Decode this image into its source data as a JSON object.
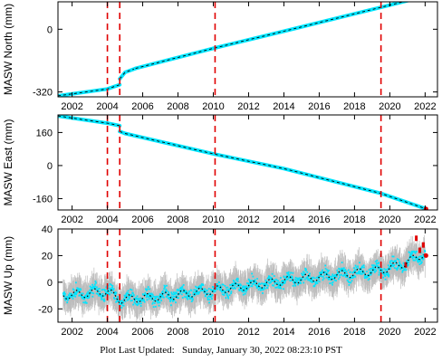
{
  "footer": {
    "label": "Plot Last Updated:",
    "datetime": "Sunday, January 30, 2022 08:23:10 PST"
  },
  "colors": {
    "series": "#00e5ff",
    "errorbar": "#bdbdbd",
    "model": "#000000",
    "event_line": "#e00000",
    "latest_point": "#e00000"
  },
  "chart_data": [
    {
      "type": "line",
      "ylabel": "MASW North (mm)",
      "xlim": [
        2001.2,
        2022.7
      ],
      "ylim": [
        -345,
        140
      ],
      "xticks": [
        2002,
        2004,
        2006,
        2008,
        2010,
        2012,
        2014,
        2016,
        2018,
        2020,
        2022
      ],
      "xtick_labels": [
        "2002",
        "2004",
        "2006",
        "2008",
        "2010",
        "2012",
        "2014",
        "2016",
        "2018",
        "2020",
        "2022"
      ],
      "yticks": [
        -320,
        0
      ],
      "ytick_labels": [
        "-320",
        "0"
      ],
      "event_lines": [
        2004.0,
        2004.7,
        2010.1,
        2019.5
      ],
      "series": [
        {
          "x": [
            2001.2,
            2004.0,
            2004.7
          ],
          "y": [
            -340,
            -305,
            -283
          ]
        },
        {
          "x": [
            2004.7,
            2005.0,
            2005.6
          ],
          "y": [
            -253,
            -220,
            -200
          ]
        },
        {
          "x": [
            2005.6,
            2010.1,
            2014.0,
            2019.5,
            2022.0
          ],
          "y": [
            -200,
            -95,
            -10,
            112,
            168
          ]
        }
      ],
      "latest_point": [
        2022.05,
        168
      ]
    },
    {
      "type": "line",
      "ylabel": "MASW East (mm)",
      "xlim": [
        2001.2,
        2022.7
      ],
      "ylim": [
        -215,
        245
      ],
      "xticks": [
        2002,
        2004,
        2006,
        2008,
        2010,
        2012,
        2014,
        2016,
        2018,
        2020,
        2022
      ],
      "xtick_labels": [
        "2002",
        "2004",
        "2006",
        "2008",
        "2010",
        "2012",
        "2014",
        "2016",
        "2018",
        "2020",
        "2022"
      ],
      "yticks": [
        -160,
        0,
        160
      ],
      "ytick_labels": [
        "-160",
        "0",
        "160"
      ],
      "event_lines": [
        2004.0,
        2004.7,
        2010.1,
        2019.5
      ],
      "series": [
        {
          "x": [
            2001.2,
            2004.0,
            2004.7
          ],
          "y": [
            240,
            205,
            193
          ]
        },
        {
          "x": [
            2004.7,
            2005.0
          ],
          "y": [
            165,
            155
          ]
        },
        {
          "x": [
            2005.0,
            2010.1,
            2014.0,
            2019.5,
            2022.0
          ],
          "y": [
            155,
            55,
            -15,
            -135,
            -208
          ]
        }
      ],
      "latest_point": [
        2022.05,
        -210
      ]
    },
    {
      "type": "scatter",
      "ylabel": "MASW Up (mm)",
      "xlim": [
        2001.2,
        2022.7
      ],
      "ylim": [
        -30,
        40
      ],
      "xticks": [
        2002,
        2004,
        2006,
        2008,
        2010,
        2012,
        2014,
        2016,
        2018,
        2020,
        2022
      ],
      "xtick_labels": [
        "2002",
        "2004",
        "2006",
        "2008",
        "2010",
        "2012",
        "2014",
        "2016",
        "2018",
        "2020",
        "2022"
      ],
      "yticks": [
        -20,
        0,
        20,
        40
      ],
      "ytick_labels": [
        "-20",
        "0",
        "20",
        "40"
      ],
      "event_lines": [
        2004.0,
        2004.7,
        2010.1,
        2019.5
      ],
      "trend": {
        "x": [
          2001.5,
          2004.0,
          2004.7,
          2007.0,
          2010.1,
          2014.0,
          2016.0,
          2019.5,
          2020.8,
          2022.0
        ],
        "y": [
          -10,
          -7,
          -13,
          -11,
          -6,
          1,
          4,
          9,
          14,
          22
        ]
      },
      "seasonal_amplitude": 3,
      "scatter_half_width": 8,
      "errorbar_half_height": 9,
      "outliers": [
        {
          "x": 2021.5,
          "y": 33
        },
        {
          "x": 2021.7,
          "y": 24
        },
        {
          "x": 2021.9,
          "y": 28
        },
        {
          "x": 2020.9,
          "y": 13
        }
      ],
      "latest_point": [
        2022.05,
        20
      ]
    }
  ]
}
